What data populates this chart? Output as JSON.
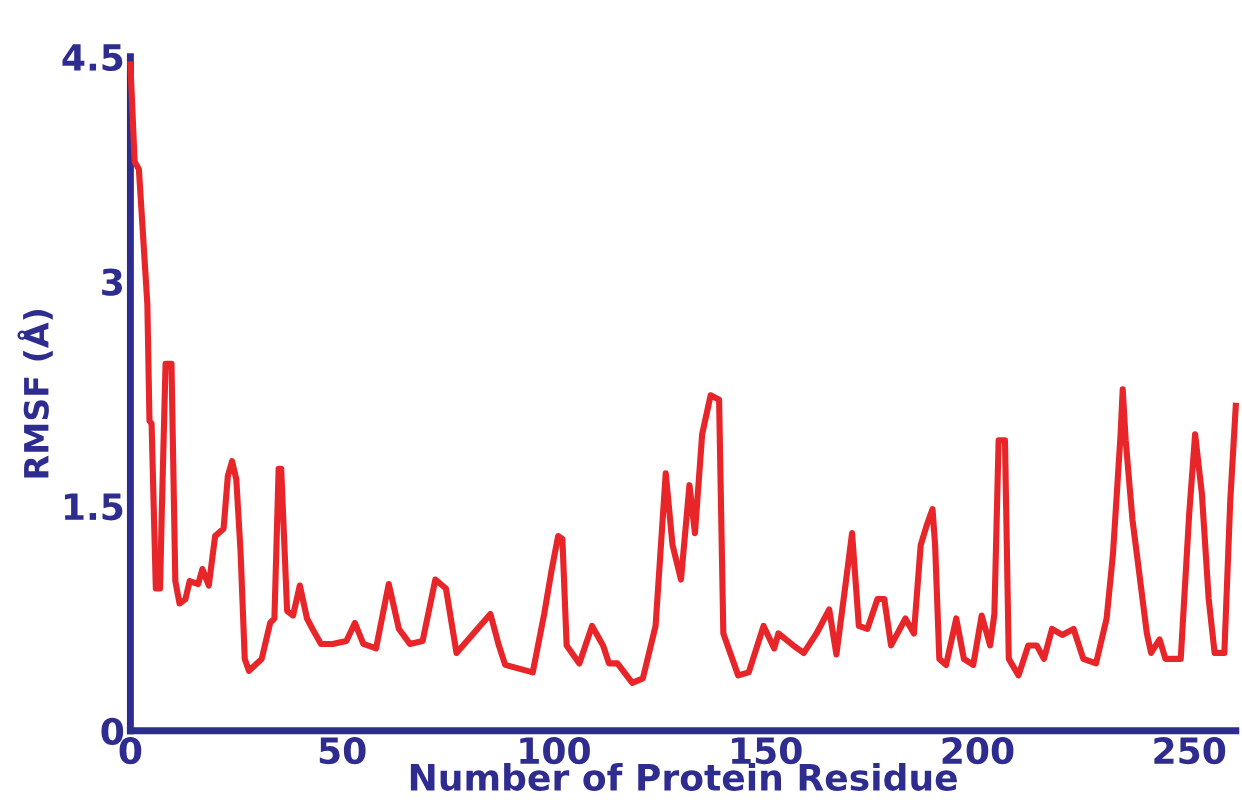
{
  "chart_data": {
    "type": "line",
    "xlabel": "Number of Protein Residue",
    "ylabel": "RMSF (Å)",
    "xlim": [
      0,
      261
    ],
    "ylim": [
      0,
      4.5
    ],
    "xticks": [
      0,
      50,
      100,
      150,
      200,
      250
    ],
    "yticks": [
      0,
      1.5,
      3,
      4.5
    ],
    "grid": false,
    "marker": "none",
    "line_style": "solid",
    "series": [
      {
        "color": "#e8262a",
        "x": [
          0,
          1,
          2,
          3,
          4,
          4.5,
          5,
          6,
          7,
          7.4,
          8.3,
          9.7,
          10.6,
          11.6,
          13,
          14,
          16,
          17,
          18.5,
          20,
          22,
          23,
          24,
          25,
          26,
          27,
          28,
          31,
          33,
          34,
          35,
          35.6,
          37,
          38.4,
          40,
          41.7,
          43,
          45,
          47.7,
          51,
          53,
          55,
          58,
          61,
          63.4,
          66,
          69,
          72,
          74.5,
          77,
          81,
          85,
          87,
          88.5,
          95,
          97.7,
          99.5,
          101,
          102,
          103,
          106,
          109,
          111.6,
          113,
          115,
          118.5,
          121,
          124,
          126.4,
          128,
          130,
          132,
          133.3,
          135,
          137,
          139,
          140,
          143.5,
          146,
          149.5,
          152,
          153,
          156.5,
          159,
          162,
          165,
          166.7,
          169,
          170.4,
          172,
          174,
          176.4,
          178,
          179.6,
          183,
          185,
          186.6,
          188,
          189.4,
          190,
          191,
          192.6,
          195,
          196.8,
          199,
          201,
          203,
          204,
          205,
          206.5,
          207.4,
          209.7,
          212,
          214,
          215.7,
          217.6,
          220,
          222.7,
          225,
          228,
          230.5,
          232,
          233.8,
          234.3,
          235,
          236.6,
          238.4,
          240,
          241,
          243,
          244.4,
          248,
          250,
          251.4,
          253,
          254.6,
          256,
          258.3,
          259.7,
          261
        ],
        "values": [
          4.45,
          3.8,
          3.75,
          3.3,
          2.85,
          2.07,
          2.05,
          0.95,
          0.95,
          1.45,
          2.45,
          2.45,
          1.0,
          0.85,
          0.88,
          1.0,
          0.98,
          1.08,
          0.97,
          1.3,
          1.35,
          1.7,
          1.8,
          1.68,
          1.2,
          0.48,
          0.4,
          0.48,
          0.72,
          0.75,
          1.75,
          1.75,
          0.8,
          0.77,
          0.97,
          0.75,
          0.68,
          0.58,
          0.58,
          0.6,
          0.72,
          0.58,
          0.55,
          0.98,
          0.68,
          0.58,
          0.6,
          1.01,
          0.95,
          0.52,
          0.65,
          0.78,
          0.57,
          0.44,
          0.39,
          0.78,
          1.08,
          1.3,
          1.28,
          0.57,
          0.45,
          0.7,
          0.57,
          0.45,
          0.45,
          0.32,
          0.35,
          0.7,
          1.72,
          1.24,
          1.01,
          1.64,
          1.32,
          1.98,
          2.24,
          2.21,
          0.65,
          0.37,
          0.39,
          0.7,
          0.55,
          0.65,
          0.57,
          0.52,
          0.65,
          0.81,
          0.51,
          1.01,
          1.32,
          0.7,
          0.68,
          0.88,
          0.88,
          0.57,
          0.75,
          0.65,
          1.24,
          1.37,
          1.48,
          1.24,
          0.48,
          0.44,
          0.75,
          0.48,
          0.44,
          0.77,
          0.57,
          0.78,
          1.94,
          1.94,
          0.48,
          0.37,
          0.57,
          0.57,
          0.48,
          0.68,
          0.64,
          0.68,
          0.48,
          0.45,
          0.75,
          1.18,
          1.98,
          2.28,
          1.94,
          1.41,
          1.01,
          0.65,
          0.52,
          0.61,
          0.48,
          0.48,
          1.45,
          1.98,
          1.58,
          0.88,
          0.52,
          0.52,
          1.54,
          2.17
        ]
      }
    ]
  }
}
